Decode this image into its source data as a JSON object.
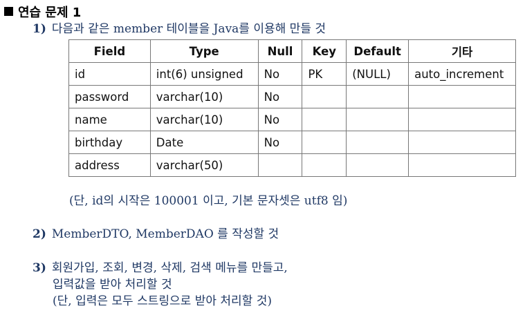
{
  "title": "연습 문제 1",
  "q1": {
    "num": "1)",
    "text": "다음과 같은 member 테이블을 Java를 이용해 만들 것"
  },
  "table": {
    "headers": [
      "Field",
      "Type",
      "Null",
      "Key",
      "Default",
      "기타"
    ],
    "rows": [
      [
        "id",
        "int(6) unsigned",
        "No",
        "PK",
        "(NULL)",
        "auto_increment"
      ],
      [
        "password",
        "varchar(10)",
        "No",
        "",
        "",
        ""
      ],
      [
        "name",
        "varchar(10)",
        "No",
        "",
        "",
        ""
      ],
      [
        "birthday",
        "Date",
        "No",
        "",
        "",
        ""
      ],
      [
        "address",
        "varchar(50)",
        "",
        "",
        "",
        ""
      ]
    ]
  },
  "note1": "(단, id의 시작은 100001 이고, 기본 문자셋은 utf8 임)",
  "q2": {
    "num": "2)",
    "text": "MemberDTO, MemberDAO 를 작성할 것"
  },
  "q3": {
    "num": "3)",
    "line1": "회원가입, 조회, 변경, 삭제, 검색 메뉴를 만들고,",
    "line2": "입력값을 받아 처리할 것",
    "line3": "(단, 입력은 모두 스트링으로 받아 처리할 것)"
  }
}
